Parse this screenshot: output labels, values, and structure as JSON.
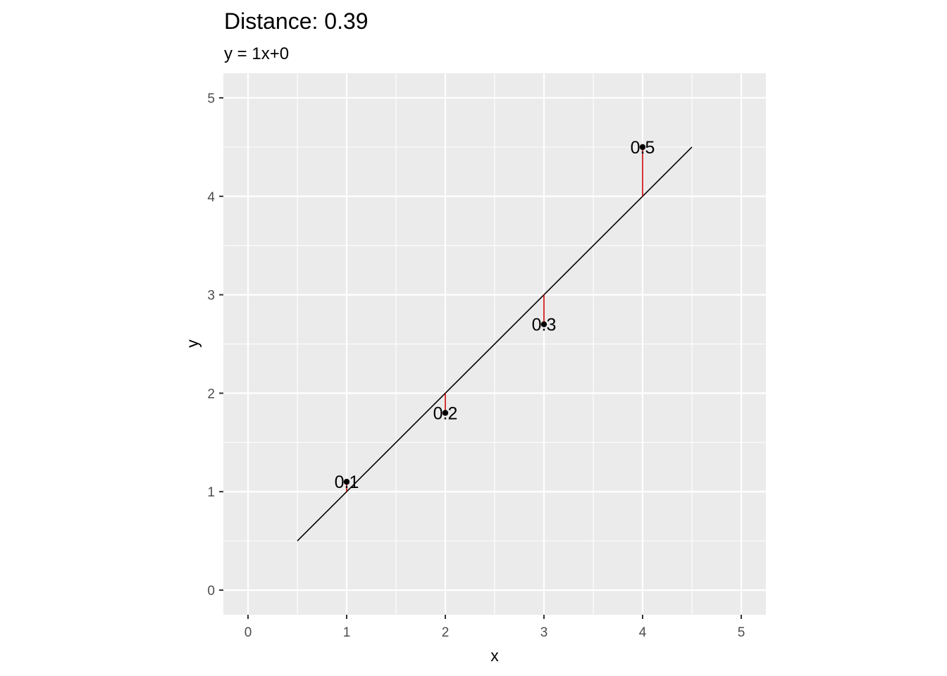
{
  "chart_data": {
    "type": "scatter",
    "title": "Distance: 0.39",
    "subtitle": "y = 1x+0",
    "xlabel": "x",
    "ylabel": "y",
    "xlim": [
      -0.25,
      5.25
    ],
    "ylim": [
      -0.25,
      5.25
    ],
    "x_ticks": [
      0,
      1,
      2,
      3,
      4,
      5
    ],
    "y_ticks": [
      0,
      1,
      2,
      3,
      4,
      5
    ],
    "grid": true,
    "line": {
      "slope": 1,
      "intercept": 0,
      "x_range": [
        0.5,
        4.5
      ],
      "color": "#000000"
    },
    "points": [
      {
        "x": 1,
        "y": 1.1,
        "label": "0.1"
      },
      {
        "x": 2,
        "y": 1.8,
        "label": "0.2"
      },
      {
        "x": 3,
        "y": 2.7,
        "label": "0.3"
      },
      {
        "x": 4,
        "y": 4.5,
        "label": "0.5"
      }
    ],
    "residual_color": "#cc0000",
    "panel_color": "#ebebeb",
    "grid_color": "#ffffff"
  }
}
